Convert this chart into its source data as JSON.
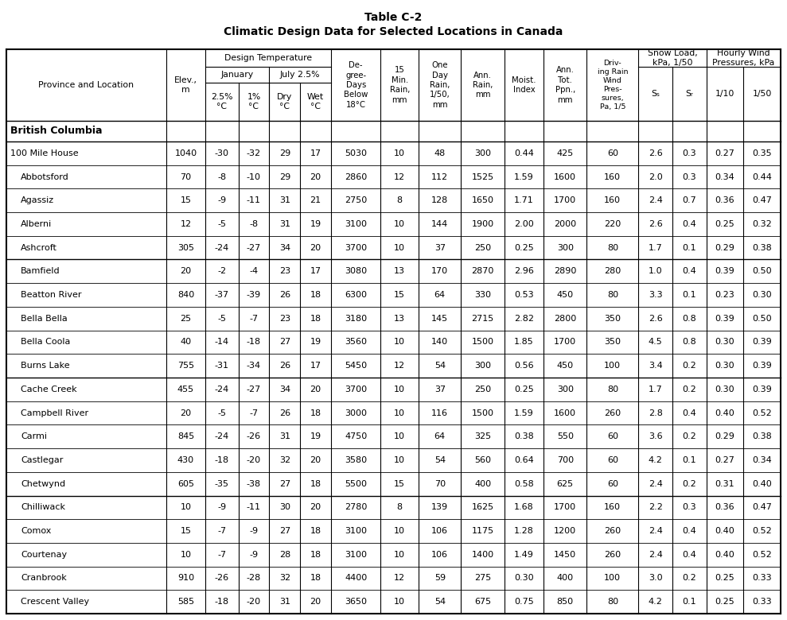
{
  "title_line1": "Table C-2",
  "title_line2": "Climatic Design Data for Selected Locations in Canada",
  "section_header": "British Columbia",
  "rows": [
    [
      "100 Mile House",
      "1040",
      "-30",
      "-32",
      "29",
      "17",
      "5030",
      "10",
      "48",
      "300",
      "0.44",
      "425",
      "60",
      "2.6",
      "0.3",
      "0.27",
      "0.35"
    ],
    [
      "Abbotsford",
      "70",
      "-8",
      "-10",
      "29",
      "20",
      "2860",
      "12",
      "112",
      "1525",
      "1.59",
      "1600",
      "160",
      "2.0",
      "0.3",
      "0.34",
      "0.44"
    ],
    [
      "Agassiz",
      "15",
      "-9",
      "-11",
      "31",
      "21",
      "2750",
      "8",
      "128",
      "1650",
      "1.71",
      "1700",
      "160",
      "2.4",
      "0.7",
      "0.36",
      "0.47"
    ],
    [
      "Alberni",
      "12",
      "-5",
      "-8",
      "31",
      "19",
      "3100",
      "10",
      "144",
      "1900",
      "2.00",
      "2000",
      "220",
      "2.6",
      "0.4",
      "0.25",
      "0.32"
    ],
    [
      "Ashcroft",
      "305",
      "-24",
      "-27",
      "34",
      "20",
      "3700",
      "10",
      "37",
      "250",
      "0.25",
      "300",
      "80",
      "1.7",
      "0.1",
      "0.29",
      "0.38"
    ],
    [
      "Bamfield",
      "20",
      "-2",
      "-4",
      "23",
      "17",
      "3080",
      "13",
      "170",
      "2870",
      "2.96",
      "2890",
      "280",
      "1.0",
      "0.4",
      "0.39",
      "0.50"
    ],
    [
      "Beatton River",
      "840",
      "-37",
      "-39",
      "26",
      "18",
      "6300",
      "15",
      "64",
      "330",
      "0.53",
      "450",
      "80",
      "3.3",
      "0.1",
      "0.23",
      "0.30"
    ],
    [
      "Bella Bella",
      "25",
      "-5",
      "-7",
      "23",
      "18",
      "3180",
      "13",
      "145",
      "2715",
      "2.82",
      "2800",
      "350",
      "2.6",
      "0.8",
      "0.39",
      "0.50"
    ],
    [
      "Bella Coola",
      "40",
      "-14",
      "-18",
      "27",
      "19",
      "3560",
      "10",
      "140",
      "1500",
      "1.85",
      "1700",
      "350",
      "4.5",
      "0.8",
      "0.30",
      "0.39"
    ],
    [
      "Burns Lake",
      "755",
      "-31",
      "-34",
      "26",
      "17",
      "5450",
      "12",
      "54",
      "300",
      "0.56",
      "450",
      "100",
      "3.4",
      "0.2",
      "0.30",
      "0.39"
    ],
    [
      "Cache Creek",
      "455",
      "-24",
      "-27",
      "34",
      "20",
      "3700",
      "10",
      "37",
      "250",
      "0.25",
      "300",
      "80",
      "1.7",
      "0.2",
      "0.30",
      "0.39"
    ],
    [
      "Campbell River",
      "20",
      "-5",
      "-7",
      "26",
      "18",
      "3000",
      "10",
      "116",
      "1500",
      "1.59",
      "1600",
      "260",
      "2.8",
      "0.4",
      "0.40",
      "0.52"
    ],
    [
      "Carmi",
      "845",
      "-24",
      "-26",
      "31",
      "19",
      "4750",
      "10",
      "64",
      "325",
      "0.38",
      "550",
      "60",
      "3.6",
      "0.2",
      "0.29",
      "0.38"
    ],
    [
      "Castlegar",
      "430",
      "-18",
      "-20",
      "32",
      "20",
      "3580",
      "10",
      "54",
      "560",
      "0.64",
      "700",
      "60",
      "4.2",
      "0.1",
      "0.27",
      "0.34"
    ],
    [
      "Chetwynd",
      "605",
      "-35",
      "-38",
      "27",
      "18",
      "5500",
      "15",
      "70",
      "400",
      "0.58",
      "625",
      "60",
      "2.4",
      "0.2",
      "0.31",
      "0.40"
    ],
    [
      "Chilliwack",
      "10",
      "-9",
      "-11",
      "30",
      "20",
      "2780",
      "8",
      "139",
      "1625",
      "1.68",
      "1700",
      "160",
      "2.2",
      "0.3",
      "0.36",
      "0.47"
    ],
    [
      "Comox",
      "15",
      "-7",
      "-9",
      "27",
      "18",
      "3100",
      "10",
      "106",
      "1175",
      "1.28",
      "1200",
      "260",
      "2.4",
      "0.4",
      "0.40",
      "0.52"
    ],
    [
      "Courtenay",
      "10",
      "-7",
      "-9",
      "28",
      "18",
      "3100",
      "10",
      "106",
      "1400",
      "1.49",
      "1450",
      "260",
      "2.4",
      "0.4",
      "0.40",
      "0.52"
    ],
    [
      "Cranbrook",
      "910",
      "-26",
      "-28",
      "32",
      "18",
      "4400",
      "12",
      "59",
      "275",
      "0.30",
      "400",
      "100",
      "3.0",
      "0.2",
      "0.25",
      "0.33"
    ],
    [
      "Crescent Valley",
      "585",
      "-18",
      "-20",
      "31",
      "20",
      "3650",
      "10",
      "54",
      "675",
      "0.75",
      "850",
      "80",
      "4.2",
      "0.1",
      "0.25",
      "0.33"
    ]
  ],
  "group_sep_after": [
    4,
    9,
    14
  ],
  "col_widths_rel": [
    1.55,
    0.38,
    0.32,
    0.3,
    0.3,
    0.3,
    0.48,
    0.37,
    0.41,
    0.42,
    0.38,
    0.42,
    0.5,
    0.33,
    0.33,
    0.36,
    0.36
  ],
  "bg_color": "#ffffff",
  "title_fontsize": 10,
  "header_fontsize": 7.8,
  "data_fontsize": 8.0,
  "section_fontsize": 9.0
}
